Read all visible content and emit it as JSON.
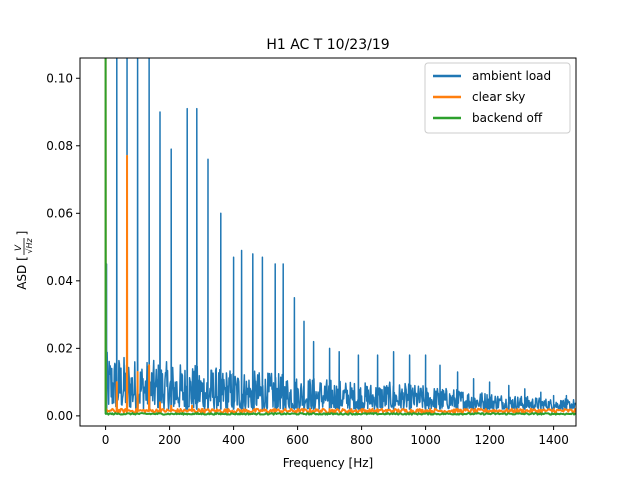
{
  "chart_data": {
    "type": "line",
    "title": "H1 AC T 10/23/19",
    "xlabel": "Frequency [Hz]",
    "ylabel": "ASD [V/√Hz]",
    "ylabel_parts": {
      "prefix": "ASD [",
      "num": "V",
      "den": "√Hz",
      "suffix": "]"
    },
    "xlim": [
      -80,
      1470
    ],
    "ylim": [
      -0.003,
      0.106
    ],
    "xticks": [
      0,
      200,
      400,
      600,
      800,
      1000,
      1200,
      1400
    ],
    "xtick_labels": [
      "0",
      "200",
      "400",
      "600",
      "800",
      "1000",
      "1200",
      "1400"
    ],
    "yticks": [
      0.0,
      0.02,
      0.04,
      0.06,
      0.08,
      0.1
    ],
    "ytick_labels": [
      "0.00",
      "0.02",
      "0.04",
      "0.06",
      "0.08",
      "0.10"
    ],
    "grid": false,
    "legend_position": "top-right",
    "series": [
      {
        "name": "ambient load",
        "color": "#1f77b4",
        "noise_band": [
          [
            0,
            0.002,
            0.019
          ],
          [
            100,
            0.002,
            0.017
          ],
          [
            200,
            0.002,
            0.016
          ],
          [
            300,
            0.002,
            0.015
          ],
          [
            400,
            0.002,
            0.014
          ],
          [
            500,
            0.002,
            0.013
          ],
          [
            600,
            0.002,
            0.012
          ],
          [
            700,
            0.002,
            0.011
          ],
          [
            800,
            0.002,
            0.01
          ],
          [
            900,
            0.002,
            0.01
          ],
          [
            1000,
            0.002,
            0.009
          ],
          [
            1100,
            0.002,
            0.008
          ],
          [
            1200,
            0.002,
            0.007
          ],
          [
            1300,
            0.002,
            0.006
          ],
          [
            1400,
            0.002,
            0.005
          ],
          [
            1470,
            0.002,
            0.005
          ]
        ],
        "peaks": [
          [
            3,
            0.045
          ],
          [
            35,
            0.106
          ],
          [
            67,
            0.106
          ],
          [
            100,
            0.106
          ],
          [
            136,
            0.106
          ],
          [
            170,
            0.09
          ],
          [
            205,
            0.079
          ],
          [
            255,
            0.091
          ],
          [
            285,
            0.091
          ],
          [
            320,
            0.076
          ],
          [
            360,
            0.06
          ],
          [
            400,
            0.047
          ],
          [
            425,
            0.049
          ],
          [
            460,
            0.048
          ],
          [
            490,
            0.047
          ],
          [
            530,
            0.045
          ],
          [
            555,
            0.045
          ],
          [
            590,
            0.035
          ],
          [
            620,
            0.028
          ],
          [
            650,
            0.022
          ],
          [
            700,
            0.02
          ],
          [
            730,
            0.019
          ],
          [
            790,
            0.018
          ],
          [
            850,
            0.018
          ],
          [
            900,
            0.019
          ],
          [
            950,
            0.018
          ],
          [
            1000,
            0.018
          ],
          [
            1045,
            0.015
          ],
          [
            1100,
            0.013
          ],
          [
            1150,
            0.011
          ],
          [
            1200,
            0.01
          ],
          [
            1260,
            0.009
          ],
          [
            1310,
            0.008
          ],
          [
            1360,
            0.007
          ],
          [
            1400,
            0.006
          ],
          [
            1440,
            0.006
          ]
        ]
      },
      {
        "name": "clear sky",
        "color": "#ff7f0e",
        "baseline": 0.0015,
        "peaks": [
          [
            0,
            0.106
          ],
          [
            35,
            0.01
          ],
          [
            67,
            0.077
          ],
          [
            100,
            0.013
          ],
          [
            136,
            0.015
          ],
          [
            170,
            0.004
          ],
          [
            205,
            0.003
          ],
          [
            270,
            0.003
          ],
          [
            300,
            0.002
          ],
          [
            530,
            0.002
          ],
          [
            700,
            0.002
          ],
          [
            800,
            0.002
          ],
          [
            1400,
            0.002
          ]
        ]
      },
      {
        "name": "backend off",
        "color": "#2ca02c",
        "baseline": 0.0006,
        "peaks": [
          [
            0,
            0.106
          ]
        ]
      }
    ]
  }
}
